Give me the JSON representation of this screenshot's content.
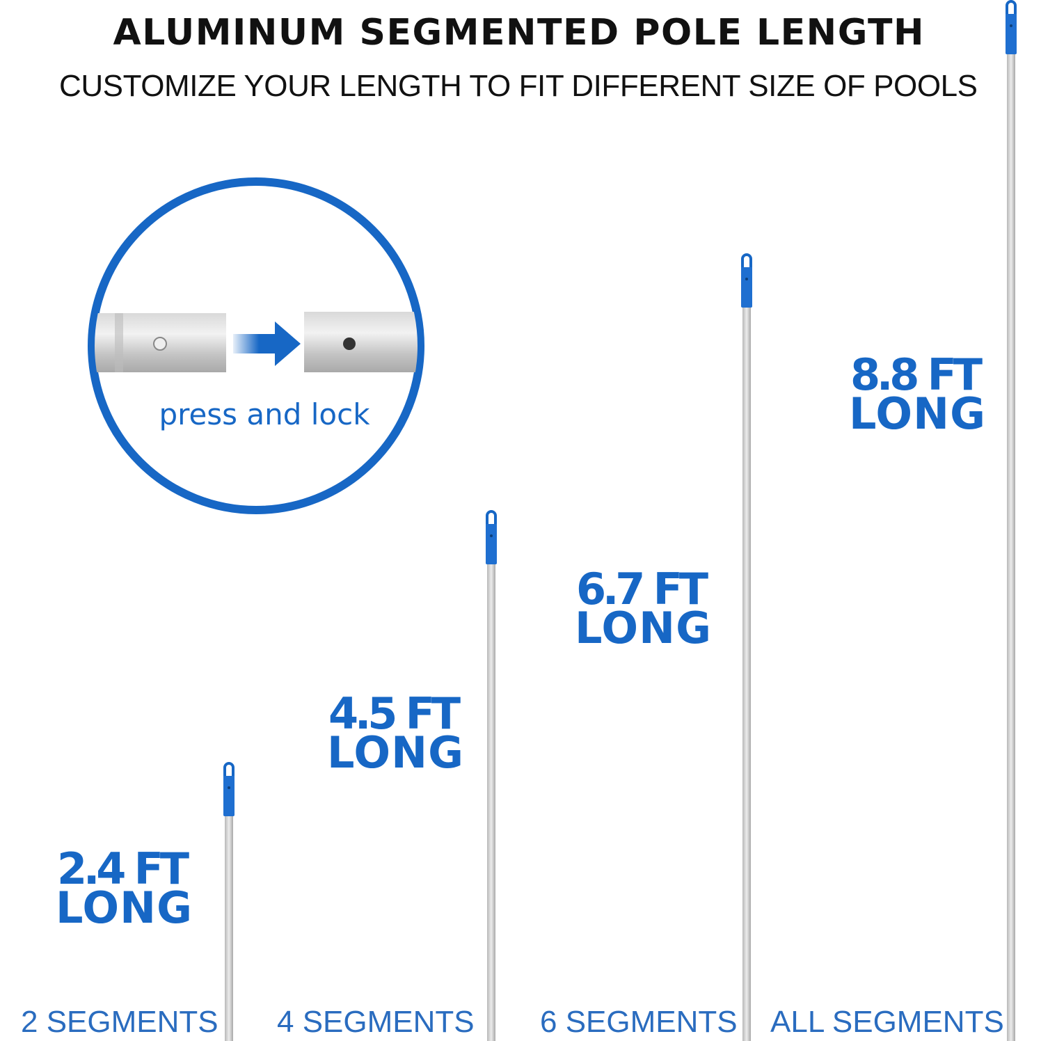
{
  "header": {
    "title": "ALUMINUM SEGMENTED POLE LENGTH",
    "subtitle": "CUSTOMIZE YOUR LENGTH TO FIT DIFFERENT SIZE OF POOLS"
  },
  "inset": {
    "caption": "press and lock"
  },
  "poles": [
    {
      "length": "2.4 FT",
      "suffix": "LONG",
      "segments": "2 SEGMENTS"
    },
    {
      "length": "4.5 FT",
      "suffix": "LONG",
      "segments": "4 SEGMENTS"
    },
    {
      "length": "6.7 FT",
      "suffix": "LONG",
      "segments": "6 SEGMENTS"
    },
    {
      "length": "8.8 FT",
      "suffix": "LONG",
      "segments": "ALL SEGMENTS"
    }
  ]
}
